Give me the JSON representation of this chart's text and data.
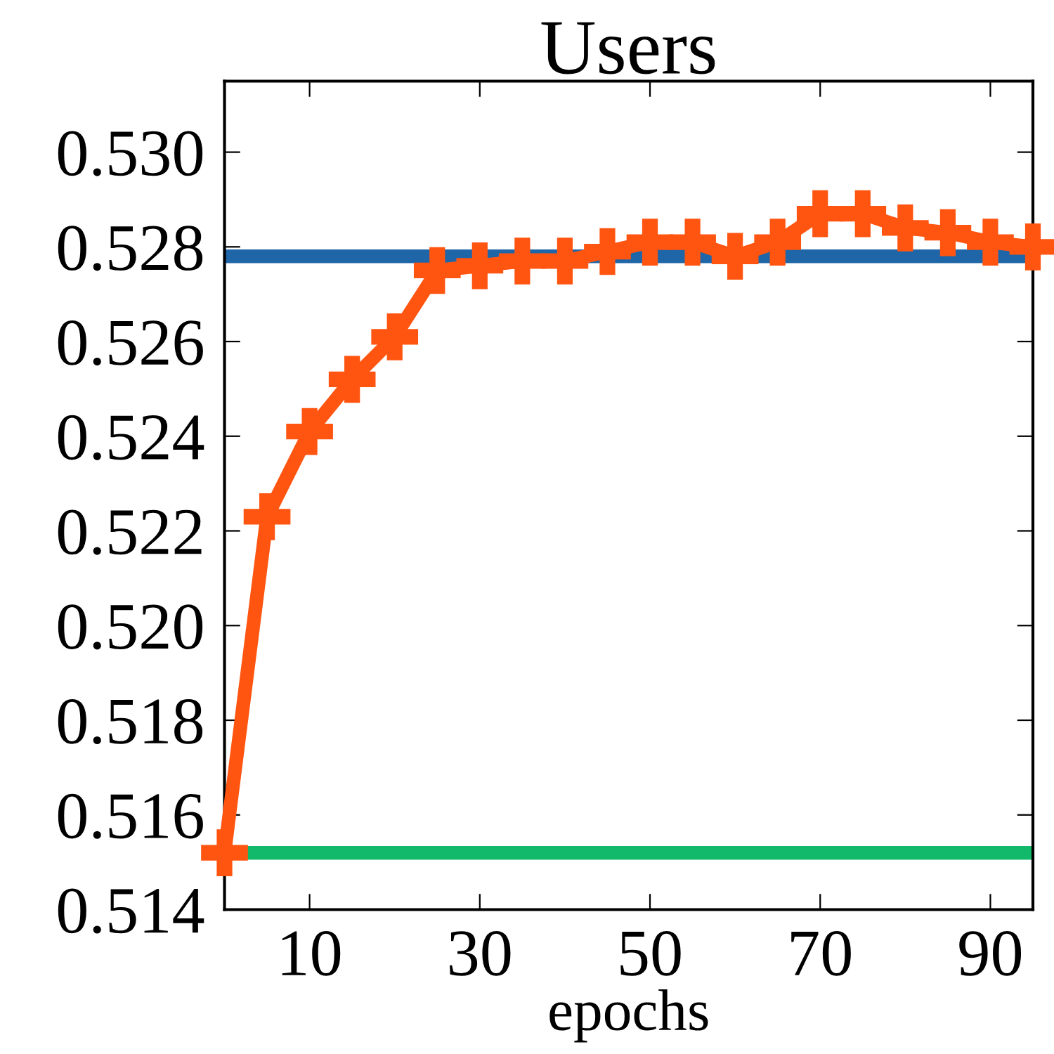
{
  "chart_data": {
    "type": "line",
    "title": "Users",
    "xlabel": "epochs",
    "x": [
      0,
      5,
      10,
      15,
      20,
      25,
      30,
      35,
      40,
      45,
      50,
      55,
      60,
      65,
      70,
      75,
      80,
      85,
      90,
      95
    ],
    "series": [
      {
        "color": "#ff5511",
        "values": [
          0.5152,
          0.5223,
          0.5241,
          0.5252,
          0.5261,
          0.5275,
          0.5276,
          0.5277,
          0.5277,
          0.5279,
          0.5281,
          0.5281,
          0.5278,
          0.5281,
          0.5287,
          0.5287,
          0.5284,
          0.5283,
          0.5281,
          0.528
        ]
      }
    ],
    "ref_lines": [
      {
        "axis": "y",
        "value": 0.5278,
        "color": "#1f66a8"
      },
      {
        "axis": "y",
        "value": 0.5152,
        "color": "#13b96b"
      }
    ],
    "xlim": [
      0,
      95
    ],
    "ylim": [
      0.514,
      0.5315
    ],
    "xticks": [
      10,
      30,
      50,
      70,
      90
    ],
    "yticks": [
      {
        "value": 0.514,
        "label": "0.514"
      },
      {
        "value": 0.516,
        "label": "0.516"
      },
      {
        "value": 0.518,
        "label": "0.518"
      },
      {
        "value": 0.52,
        "label": "0.520"
      },
      {
        "value": 0.522,
        "label": "0.522"
      },
      {
        "value": 0.524,
        "label": "0.524"
      },
      {
        "value": 0.526,
        "label": "0.526"
      },
      {
        "value": 0.528,
        "label": "0.528"
      },
      {
        "value": 0.53,
        "label": "0.530"
      }
    ],
    "grid": false,
    "legend": false,
    "marker": "cross",
    "line_style": "solid"
  }
}
